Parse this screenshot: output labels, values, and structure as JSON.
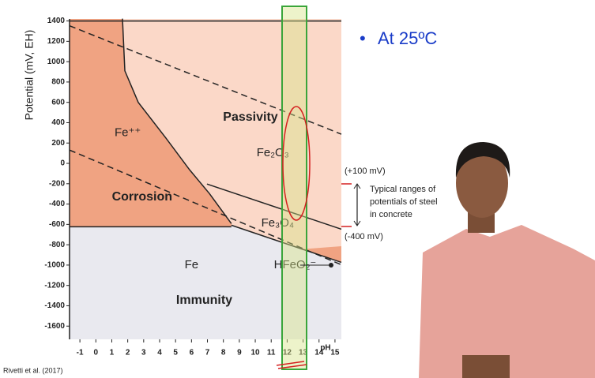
{
  "chart_data": {
    "type": "pourbaix",
    "ylabel": "Potential (mV, EH)",
    "xlabel": "pH",
    "xlim": [
      -1.65,
      15.4
    ],
    "ylim": [
      -1730,
      1420
    ],
    "xticks": [
      -1,
      0,
      1,
      2,
      3,
      4,
      5,
      6,
      7,
      8,
      9,
      10,
      11,
      12,
      13,
      14,
      15
    ],
    "yticks": [
      1400,
      1200,
      1000,
      800,
      600,
      400,
      200,
      0,
      -200,
      -400,
      -600,
      -800,
      -1000,
      -1200,
      -1400,
      -1600
    ],
    "lines": [
      {
        "x": [
          -1.65,
          15.4
        ],
        "values": [
          1400,
          1400
        ],
        "dashed": false
      },
      {
        "x": [
          1.67,
          1.82,
          2.66,
          4.4,
          5.88,
          7.12,
          8.5
        ],
        "values": [
          1423,
          910,
          600,
          248,
          -63,
          -296,
          -592
        ],
        "dashed": false
      },
      {
        "x": [
          -1.65,
          8.5
        ],
        "values": [
          -623,
          -623
        ],
        "dashed": false
      },
      {
        "x": [
          6.97,
          15.4
        ],
        "values": [
          -203,
          -647
        ],
        "dashed": false
      },
      {
        "x": [
          8.5,
          15.4
        ],
        "values": [
          -608,
          -973
        ],
        "dashed": false
      },
      {
        "x": [
          -1.65,
          15.4
        ],
        "values": [
          1353,
          287
        ],
        "dashed": true
      },
      {
        "x": [
          -1.65,
          15.4
        ],
        "values": [
          131,
          -997
        ],
        "dashed": true
      }
    ],
    "regions": [
      {
        "label": "Fe⁺⁺",
        "x": 2.0,
        "y": 300,
        "style": "region"
      },
      {
        "label": "Passivity",
        "x": 9.7,
        "y": 450,
        "style": "bold"
      },
      {
        "label": "Fe₂O₃",
        "x": 11.1,
        "y": 100,
        "style": "region"
      },
      {
        "label": "Corrosion",
        "x": 2.9,
        "y": -330,
        "style": "bold"
      },
      {
        "label": "Fe₃O₄",
        "x": 11.4,
        "y": -590,
        "style": "region"
      },
      {
        "label": "Fe",
        "x": 6.0,
        "y": -1000,
        "style": "region"
      },
      {
        "label": "HFeO₂⁻",
        "x": 12.5,
        "y": -1000,
        "style": "region"
      },
      {
        "label": "Immunity",
        "x": 6.8,
        "y": -1350,
        "style": "bold"
      }
    ]
  },
  "heading": "At 25ºC",
  "annotations": {
    "upper": "(+100 mV)",
    "range": [
      "Typical ranges of",
      "potentials of steel",
      "in concrete"
    ],
    "lower": "(-400 mV)"
  },
  "citation": "Rivetti et al. (2017)"
}
